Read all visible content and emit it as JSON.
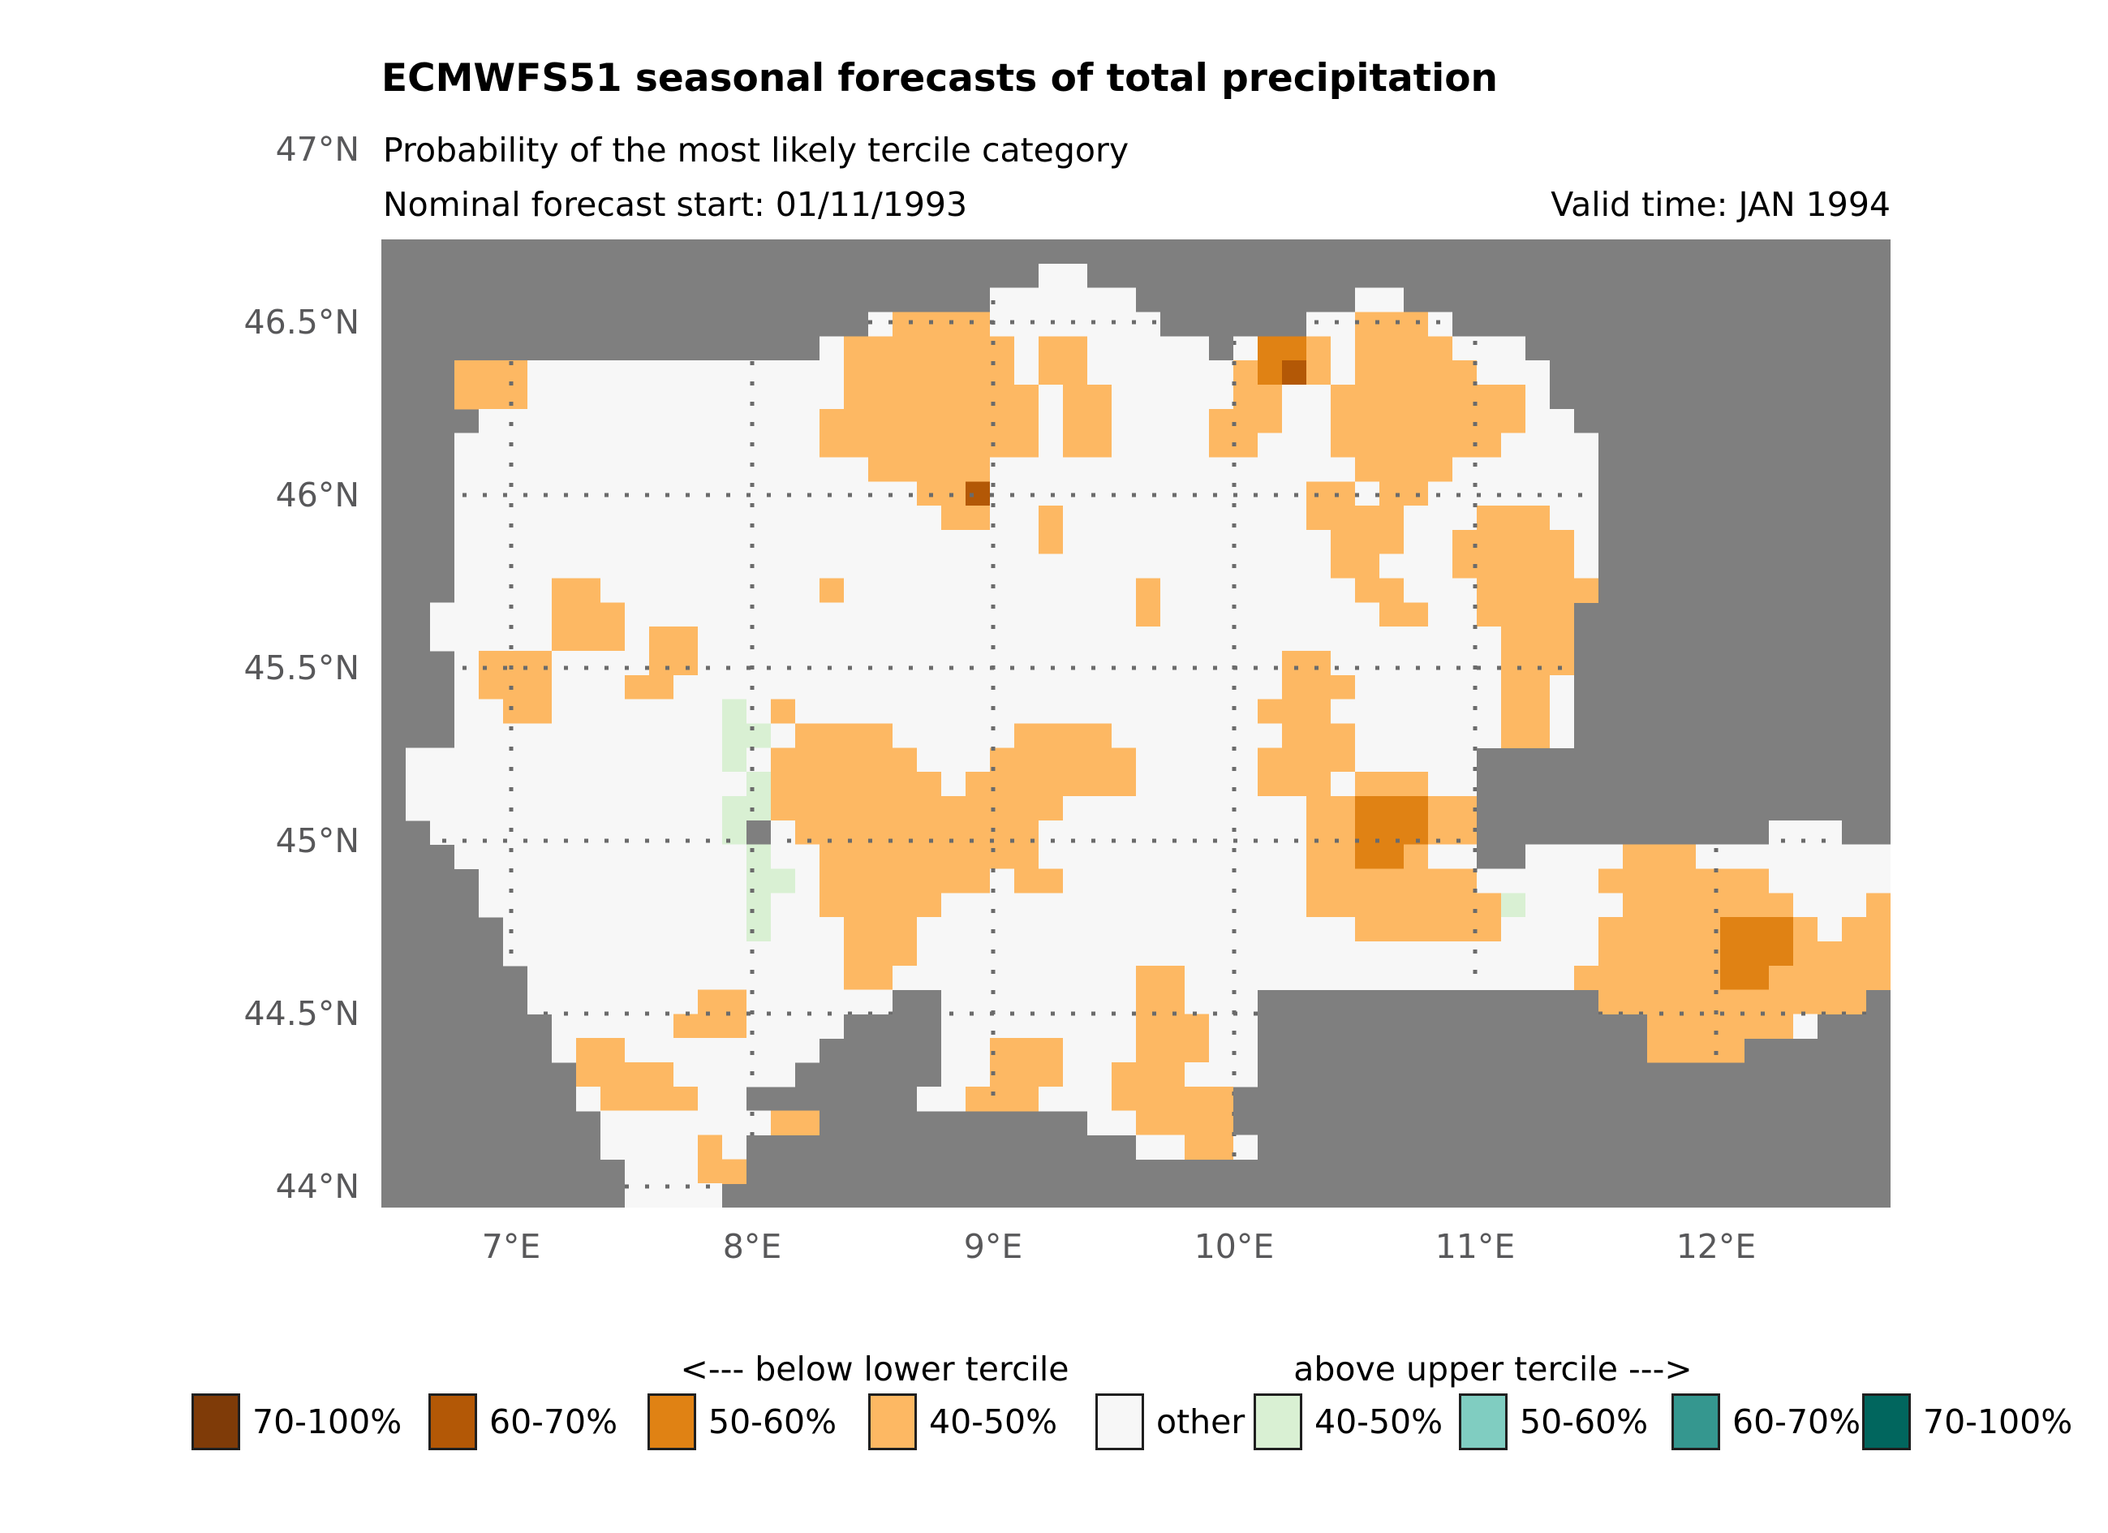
{
  "header": {
    "title": "ECMWFS51 seasonal forecasts of total precipitation",
    "subtitle": "Probability of the most likely tercile category",
    "forecast_start": "Nominal forecast start: 01/11/1993",
    "valid_time": "Valid time: JAN 1994"
  },
  "axes": {
    "y_ticks": [
      "47°N",
      "46.5°N",
      "46°N",
      "45.5°N",
      "45°N",
      "44.5°N",
      "44°N"
    ],
    "x_ticks": [
      "7°E",
      "8°E",
      "9°E",
      "10°E",
      "11°E",
      "12°E"
    ]
  },
  "legend": {
    "below_header": "<--- below lower tercile",
    "above_header": "above upper tercile --->",
    "items": [
      {
        "label": "70-100%",
        "color": "#7f3b08",
        "side": "below"
      },
      {
        "label": "60-70%",
        "color": "#b35806",
        "side": "below"
      },
      {
        "label": "50-60%",
        "color": "#e08214",
        "side": "below"
      },
      {
        "label": "40-50%",
        "color": "#fdb863",
        "side": "below"
      },
      {
        "label": "other",
        "color": "#f7f7f7",
        "side": "none"
      },
      {
        "label": "40-50%",
        "color": "#d9f0d3",
        "side": "above"
      },
      {
        "label": "50-60%",
        "color": "#80cdc1",
        "side": "above"
      },
      {
        "label": "60-70%",
        "color": "#35978f",
        "side": "above"
      },
      {
        "label": "70-100%",
        "color": "#01665e",
        "side": "above"
      }
    ]
  },
  "colors": {
    "outside_gray": "#7f7f7f",
    "domain_white": "#f7f7f7",
    "gridline": "#6b6b6b",
    "tick_text": "#58585a"
  },
  "chart_data": {
    "type": "map",
    "title": "ECMWFS51 seasonal forecasts of total precipitation",
    "subtitle": "Probability of the most likely tercile category",
    "forecast_start": "01/11/1993",
    "valid_time": "JAN 1994",
    "legend_position": "bottom",
    "grid_on": true,
    "lon_ticks_deg_e": [
      7,
      8,
      9,
      10,
      11,
      12
    ],
    "lat_ticks_deg_n": [
      47,
      46.5,
      46,
      45.5,
      45,
      44.5,
      44
    ],
    "lon_range_deg_e": [
      6.46,
      12.72
    ],
    "lat_range_deg_n": [
      43.94,
      46.74
    ],
    "classes": [
      {
        "code": "b",
        "meaning": "below lower tercile 60-70%",
        "color": "#b35806"
      },
      {
        "code": "O",
        "meaning": "below lower tercile 50-60%",
        "color": "#e08214"
      },
      {
        "code": "o",
        "meaning": "below lower tercile 40-50%",
        "color": "#fdb863"
      },
      {
        "code": "w",
        "meaning": "other",
        "color": "#f7f7f7"
      },
      {
        "code": "g",
        "meaning": "above upper tercile 40-50%",
        "color": "#d9f0d3"
      },
      {
        "code": "x",
        "meaning": "no data speck",
        "color": "#7f7f7f"
      },
      {
        "code": ".",
        "meaning": "outside domain",
        "color": "#7f7f7f"
      }
    ],
    "grid": {
      "cols": 62,
      "rows": 40,
      "rle_rows": [
        "62.",
        "27. 2w 33.",
        "25. 6w 9. 2w 20.",
        "20. 1w 4o 7w 6. 2w 3o 1w 18.",
        "18. 1w 7o 1w 2o 5w 1. 1w 2O 1o 1w 4o 3w 15.",
        "3. 3o 13w 7o 1w 2o 6w 1o 1O 1b 1o 1w 5o 3w 14.",
        "3. 3o 13w 8o 1w 2o 5w 2o 2w 8o 1w 14.",
        "4. 14w 9o 1w 2o 4w 3o 2w 8o 2w 13.",
        "3. 15w 9o 1w 2o 4w 2o 3w 7o 4w 12.",
        "3. 17w 5o 15w 4o 6w 12.",
        "3. 19w 2o 1b 13w 2o 1w 2o 7w 12.",
        "3. 20w 2o 2w 1o 10w 4o 3w 3o 2w 12.",
        "3. 24w 1o 11w 3o 2w 5o 1w 12.",
        "3. 36w 2o 3w 5o 1w 12.",
        "3. 4w 2o 9w 1o 12w 1o 8w 2o 3w 5o 12.",
        "2. 5w 3o 21w 1o 9w 2o 2w 4o 13.",
        "2. 5w 3o 1w 2o 33w 3o 13.",
        "3. 1w 3o 4w 2o 24w 2o 7w 3o 13.",
        "3. 1w 3o 3w 2o 25w 3o 6w 2o 1w 13.",
        "3. 2w 2o 7w 1g 1w 1o 19w 3o 7w 2o 1w 13.",
        "3. 11w 2g 1w 4o 5w 4o 7w 3o 6w 2o 1w 13.",
        "1. 13w 1g 1w 6o 3w 6o 5w 4o 5w 17.",
        "1. 14w 1g 7o 1w 7o 5w 3o 1w 3o 2w 17.",
        "1. 13w 2g 12o 10w 2o 3O 2o 17.",
        "2. 12w 1g 1x 1w 10o 11w 2o 3O 2o 12. 3w 2.",
        "3. 12w 1g 2w 9o 11w 2o 2O 1o 2w 2. 4w 3o 8w",
        "4. 11w 2g 1w 7o 1w 2o 10w 7o 5w 7o 5w",
        "4. 11w 1g 2w 5o 15w 8o 1g 4w 7o 3w 1o",
        "5. 10w 1g 3w 3o 18w 6o 4w 5o 3O 1o 1w 2o",
        "5. 14w 3o 28w 5o 3O 4o",
        "6. 13w 2o 10w 2o 16w 6o 2O 5o",
        "6. 7w 2o 6w 2. 8w 2o 3w 14. 11o 1.",
        "7. 5w 3o 4w 4. 8w 3o 2w 16. 6o 1w 3.",
        "7. 1w 2o 8w 5. 2w 3o 3w 3o 2w 16. 4o 6.",
        "8. 4o 5w 6. 2w 3o 2w 3o 3w 26.",
        "8. 1w 4o 2w 7. 2w 3o 3w 5o 27.",
        "9. 7w 2o 11. 2w 4o 27.",
        "9. 4w 1o 1w 16. 2w 2o 1w 26.",
        "10. 3w 2o 47.",
        "10. 4w 48."
      ]
    }
  }
}
